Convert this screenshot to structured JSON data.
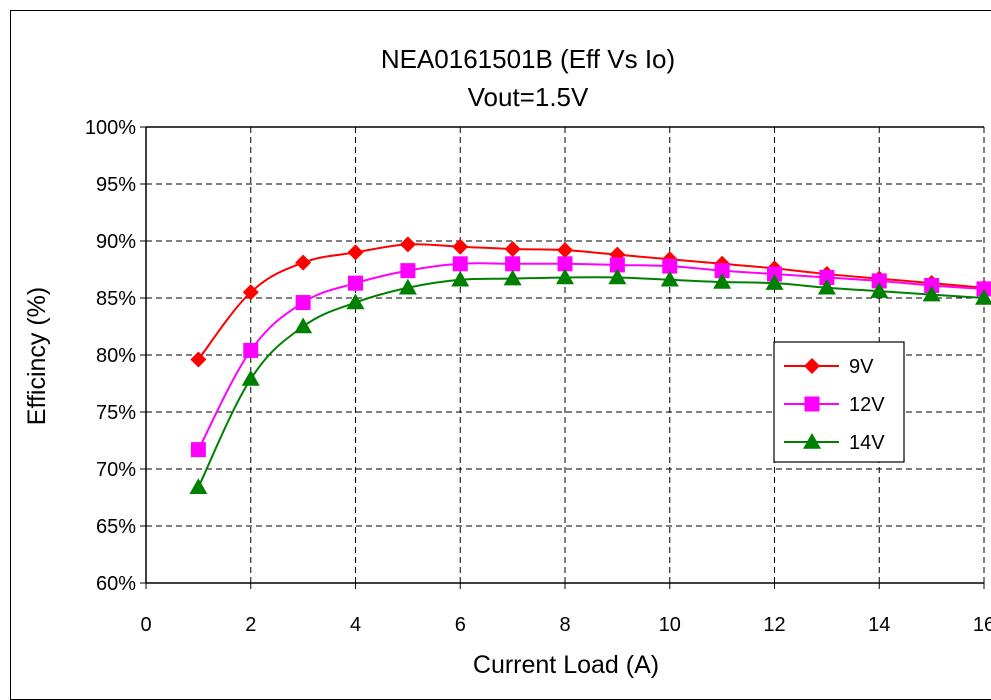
{
  "chart_data": {
    "type": "line",
    "title": "NEA0161501B (Eff Vs Io)",
    "subtitle": "Vout=1.5V",
    "xlabel": "Current Load (A)",
    "ylabel": "Efficincy (%)",
    "xlim": [
      0,
      16
    ],
    "ylim": [
      60,
      100
    ],
    "x_ticks": [
      "0",
      "2",
      "4",
      "6",
      "8",
      "10",
      "12",
      "14",
      "16"
    ],
    "y_ticks": [
      "60%",
      "65%",
      "70%",
      "75%",
      "80%",
      "85%",
      "90%",
      "95%",
      "100%"
    ],
    "grid": true,
    "legend_position": "right",
    "x": [
      1,
      2,
      3,
      4,
      5,
      6,
      7,
      8,
      9,
      10,
      11,
      12,
      13,
      14,
      15,
      16
    ],
    "series": [
      {
        "name": "9V",
        "color": "#FF0000",
        "marker": "diamond",
        "values": [
          79.6,
          85.5,
          88.1,
          89.0,
          89.7,
          89.5,
          89.3,
          89.2,
          88.8,
          88.4,
          88.0,
          87.6,
          87.1,
          86.7,
          86.3,
          85.9
        ]
      },
      {
        "name": "12V",
        "color": "#FF00FF",
        "marker": "square",
        "values": [
          71.7,
          80.4,
          84.6,
          86.3,
          87.4,
          88.0,
          88.0,
          88.0,
          87.9,
          87.8,
          87.4,
          87.1,
          86.8,
          86.5,
          86.1,
          85.8
        ]
      },
      {
        "name": "14V",
        "color": "#008000",
        "marker": "triangle",
        "values": [
          68.4,
          77.9,
          82.5,
          84.6,
          85.9,
          86.6,
          86.7,
          86.8,
          86.8,
          86.6,
          86.4,
          86.3,
          85.9,
          85.6,
          85.3,
          85.0
        ]
      }
    ]
  }
}
